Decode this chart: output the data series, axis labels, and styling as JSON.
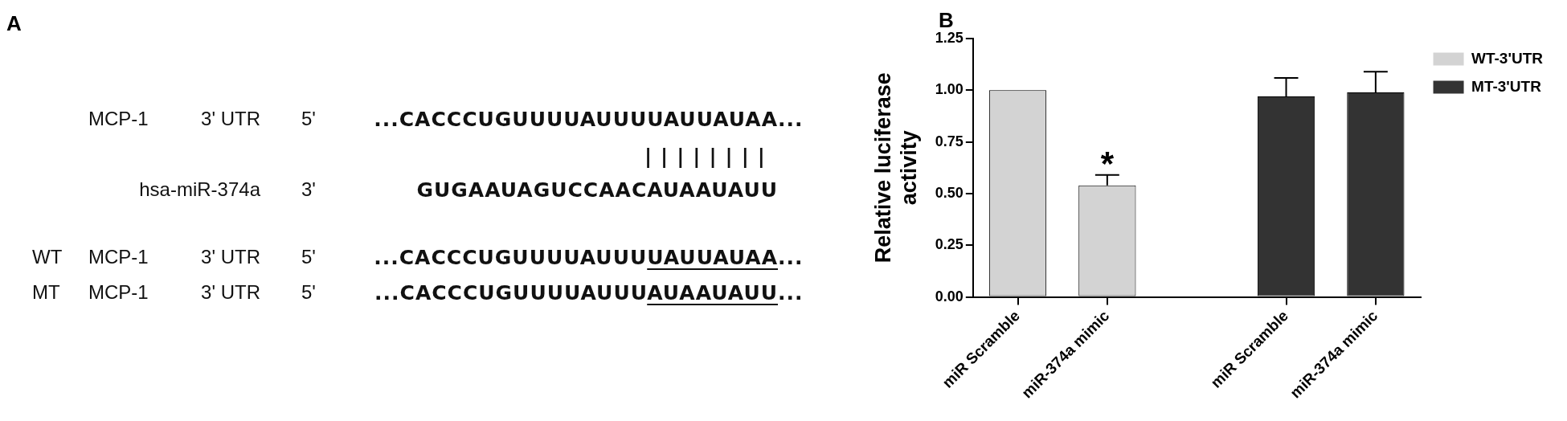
{
  "chart_data": [
    {
      "type": "other",
      "title": "A",
      "annotations": [
        "MCP-1",
        "3' UTR",
        "5'",
        "...CACCCUGUUUUAUUUUAUUAUAA",
        "...",
        "||||||||",
        "hsa-miR-374a",
        "3'",
        "GUGAAUAGUCCAACAUAAUAUU",
        "WT",
        "MCP-1",
        "3' UTR",
        "5'",
        "...CACCCUGUUUUAUUU",
        "UAUUAUAA",
        "...",
        "MT",
        "MCP-1",
        "3' UTR",
        "5'",
        "...CACCCUGUUUUAUUU",
        "AUAAUAUU",
        "..."
      ]
    },
    {
      "type": "bar",
      "title": "B",
      "ylabel": "Relative luciferase activity",
      "categories": [
        "miR Scramble",
        "miR-374a mimic",
        null,
        "miR Scramble",
        "miR-374a mimic"
      ],
      "series": [
        {
          "name": "WT-3'UTR",
          "color": "#d3d3d3",
          "values": [
            1.0,
            0.54,
            null,
            null,
            null
          ],
          "errors": [
            null,
            0.05,
            null,
            null,
            null
          ]
        },
        {
          "name": "MT-3'UTR",
          "color": "#333333",
          "values": [
            null,
            null,
            null,
            0.97,
            0.99
          ],
          "errors": [
            null,
            null,
            null,
            0.09,
            0.1
          ]
        }
      ],
      "ylim": [
        0,
        1.25
      ],
      "yticks": [
        {
          "value": 0,
          "label": "0.00"
        },
        {
          "value": 0.25,
          "label": "0.25"
        },
        {
          "value": 0.5,
          "label": "0.50"
        },
        {
          "value": 0.75,
          "label": "0.75"
        },
        {
          "value": 1,
          "label": "1.00"
        },
        {
          "value": 1.25,
          "label": "1.25"
        }
      ],
      "annotations": [
        "*"
      ],
      "grid": false,
      "legend": "top right"
    }
  ]
}
